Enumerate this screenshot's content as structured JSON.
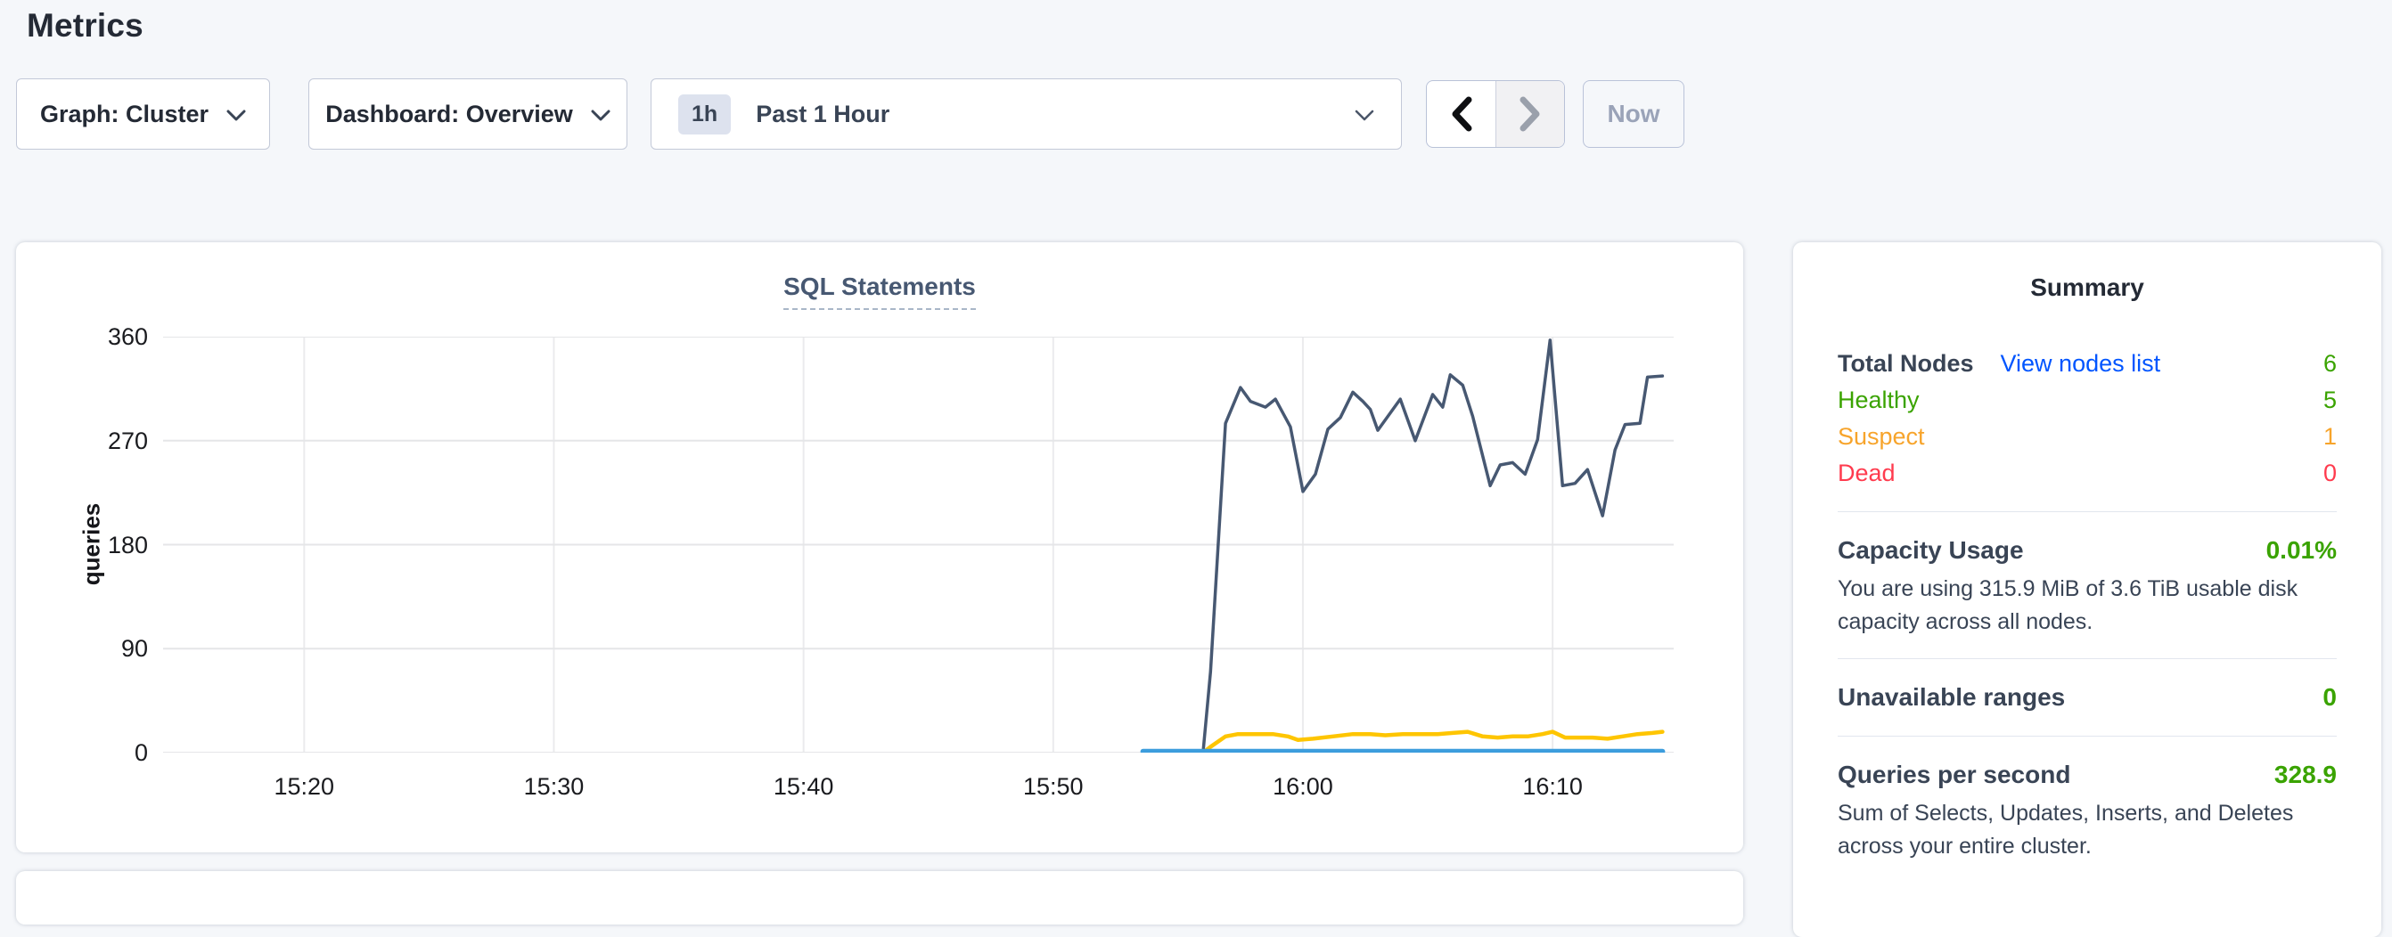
{
  "page": {
    "title": "Metrics",
    "background": "#f5f7fa"
  },
  "toolbar": {
    "graph_dropdown_label": "Graph: Cluster",
    "dashboard_dropdown_label": "Dashboard: Overview",
    "time_window_badge": "1h",
    "time_window_label": "Past 1 Hour",
    "now_button_label": "Now"
  },
  "chart_data": {
    "type": "line",
    "title": "SQL Statements",
    "ylabel": "queries",
    "xlabel": "",
    "grid": true,
    "legend": "none",
    "x_unit": "minutes after 15:15",
    "xlim": [
      -0.65,
      59.85
    ],
    "ylim": [
      0,
      360
    ],
    "y_ticks": [
      0,
      90,
      180,
      270,
      360
    ],
    "x_ticks": [
      {
        "t": 5,
        "label": "15:20"
      },
      {
        "t": 15,
        "label": "15:30"
      },
      {
        "t": 25,
        "label": "15:40"
      },
      {
        "t": 35,
        "label": "15:50"
      },
      {
        "t": 45,
        "label": "16:00"
      },
      {
        "t": 55,
        "label": "16:10"
      }
    ],
    "series": [
      {
        "name": "statements-dark-slate",
        "color": "#475872",
        "stroke_width": 3.5,
        "points": [
          [
            41.0,
            0
          ],
          [
            41.3,
            70
          ],
          [
            41.9,
            285
          ],
          [
            42.5,
            316
          ],
          [
            42.9,
            304
          ],
          [
            43.5,
            299
          ],
          [
            43.9,
            306
          ],
          [
            44.5,
            282
          ],
          [
            45.0,
            226
          ],
          [
            45.5,
            241
          ],
          [
            46.0,
            280
          ],
          [
            46.5,
            290
          ],
          [
            47.0,
            312
          ],
          [
            47.4,
            304
          ],
          [
            47.7,
            297
          ],
          [
            48.0,
            279
          ],
          [
            48.9,
            306
          ],
          [
            49.5,
            270
          ],
          [
            50.2,
            310
          ],
          [
            50.6,
            299
          ],
          [
            50.9,
            327
          ],
          [
            51.4,
            318
          ],
          [
            51.8,
            291
          ],
          [
            52.5,
            231
          ],
          [
            52.9,
            249
          ],
          [
            53.4,
            251
          ],
          [
            53.9,
            241
          ],
          [
            54.4,
            271
          ],
          [
            54.9,
            357
          ],
          [
            55.4,
            231
          ],
          [
            55.9,
            233
          ],
          [
            56.4,
            245
          ],
          [
            57.0,
            205
          ],
          [
            57.5,
            262
          ],
          [
            57.9,
            284
          ],
          [
            58.5,
            285
          ],
          [
            58.8,
            325
          ],
          [
            59.4,
            326
          ]
        ]
      },
      {
        "name": "statements-yellow",
        "color": "#fec500",
        "stroke_width": 4.5,
        "points": [
          [
            41.0,
            0
          ],
          [
            41.3,
            5
          ],
          [
            41.9,
            14
          ],
          [
            42.4,
            16
          ],
          [
            43.0,
            16
          ],
          [
            43.8,
            16
          ],
          [
            44.4,
            14
          ],
          [
            44.8,
            11
          ],
          [
            45.4,
            12
          ],
          [
            46.2,
            14
          ],
          [
            47.0,
            16
          ],
          [
            47.7,
            16
          ],
          [
            48.3,
            15
          ],
          [
            49.0,
            16
          ],
          [
            49.7,
            16
          ],
          [
            50.4,
            16
          ],
          [
            51.0,
            17
          ],
          [
            51.6,
            18
          ],
          [
            52.2,
            14
          ],
          [
            52.8,
            13
          ],
          [
            53.4,
            14
          ],
          [
            54.0,
            14
          ],
          [
            54.6,
            16
          ],
          [
            55.0,
            18
          ],
          [
            55.5,
            13
          ],
          [
            56.0,
            13
          ],
          [
            56.6,
            13
          ],
          [
            57.2,
            12
          ],
          [
            57.8,
            14
          ],
          [
            58.4,
            16
          ],
          [
            59.0,
            17
          ],
          [
            59.4,
            18
          ]
        ]
      },
      {
        "name": "statements-blue",
        "color": "#3c9ddd",
        "stroke_width": 6,
        "points": [
          [
            38.6,
            1
          ],
          [
            59.4,
            1
          ]
        ]
      }
    ]
  },
  "summary": {
    "title": "Summary",
    "node_rows": [
      {
        "label": "Total Nodes",
        "link": "View nodes list",
        "value": "6",
        "label_color": "#394455",
        "link_color": "#0055ff",
        "value_color": "#3aa300"
      },
      {
        "label": "Healthy",
        "value": "5",
        "label_color": "#3aa300",
        "value_color": "#3aa300"
      },
      {
        "label": "Suspect",
        "value": "1",
        "label_color": "#f7a42b",
        "value_color": "#f7a42b"
      },
      {
        "label": "Dead",
        "value": "0",
        "label_color": "#ff3b4e",
        "value_color": "#ff3b4e"
      }
    ],
    "sections": [
      {
        "label": "Capacity Usage",
        "value": "0.01%",
        "value_color": "#3aa300",
        "description": "You are using 315.9 MiB of 3.6 TiB usable disk capacity across all nodes."
      },
      {
        "label": "Unavailable ranges",
        "value": "0",
        "value_color": "#3aa300",
        "description": ""
      },
      {
        "label": "Queries per second",
        "value": "328.9",
        "value_color": "#3aa300",
        "description": "Sum of Selects, Updates, Inserts, and Deletes across your entire cluster."
      }
    ]
  }
}
